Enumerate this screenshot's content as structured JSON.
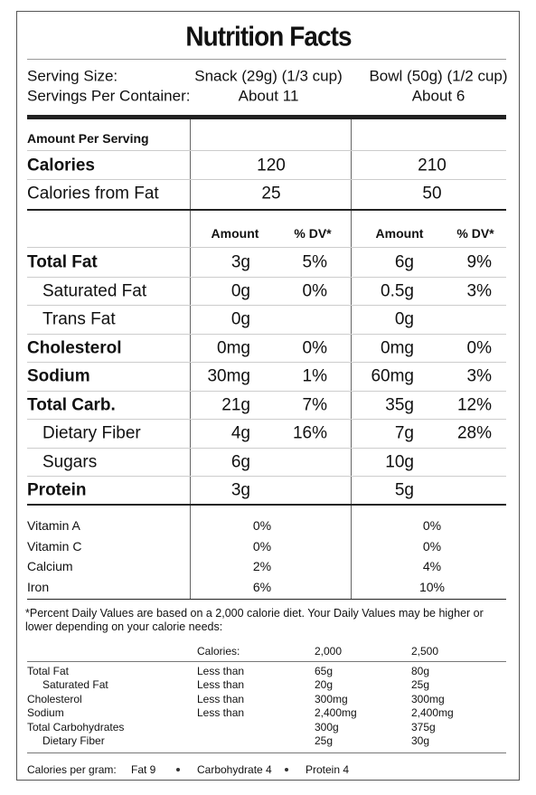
{
  "title": "Nutrition Facts",
  "serving": {
    "rows": [
      {
        "label": "Serving Size:",
        "snack": "Snack (29g) (1/3 cup)",
        "bowl": "Bowl (50g) (1/2 cup)"
      },
      {
        "label": "Servings Per Container:",
        "snack": "About 11",
        "bowl": "About 6"
      }
    ]
  },
  "amount_per_serving": "Amount Per Serving",
  "calories": [
    {
      "label": "Calories",
      "snack": "120",
      "bowl": "210"
    },
    {
      "label": "Calories from Fat",
      "snack": "25",
      "bowl": "50"
    }
  ],
  "nutrients": {
    "header": {
      "amount": "Amount",
      "dv": "% DV*"
    },
    "rows": [
      {
        "label": "Total Fat",
        "snack": [
          "3g",
          "5%"
        ],
        "bowl": [
          "6g",
          "9%"
        ]
      },
      {
        "label": "Saturated Fat",
        "snack": [
          "0g",
          "0%"
        ],
        "bowl": [
          "0.5g",
          "3%"
        ]
      },
      {
        "label": "Trans Fat",
        "snack": [
          "0g"
        ],
        "bowl": [
          "0g"
        ]
      },
      {
        "label": "Cholesterol",
        "snack": [
          "0mg",
          "0%"
        ],
        "bowl": [
          "0mg",
          "0%"
        ]
      },
      {
        "label": "Sodium",
        "snack": [
          "30mg",
          "1%"
        ],
        "bowl": [
          "60mg",
          "3%"
        ]
      },
      {
        "label": "Total Carb.",
        "snack": [
          "21g",
          "7%"
        ],
        "bowl": [
          "35g",
          "12%"
        ]
      },
      {
        "label": "Dietary Fiber",
        "snack": [
          "4g",
          "16%"
        ],
        "bowl": [
          "7g",
          "28%"
        ]
      },
      {
        "label": "Sugars",
        "snack": [
          "6g"
        ],
        "bowl": [
          "10g"
        ]
      },
      {
        "label": "Protein",
        "snack": [
          "3g"
        ],
        "bowl": [
          "5g"
        ]
      }
    ]
  },
  "vitamins": [
    {
      "label": "Vitamin A",
      "snack": "0%",
      "bowl": "0%"
    },
    {
      "label": "Vitamin C",
      "snack": "0%",
      "bowl": "0%"
    },
    {
      "label": "Calcium",
      "snack": "2%",
      "bowl": "4%"
    },
    {
      "label": "Iron",
      "snack": "6%",
      "bowl": "10%"
    }
  ],
  "footnote": "*Percent Daily Values are based on a 2,000 calorie diet. Your Daily Values may be higher or lower depending on your calorie needs:",
  "daily_values": {
    "header": [
      "Calories:",
      "2,000",
      "2,500"
    ],
    "rows": [
      {
        "nutrient": "Total Fat",
        "limit": "Less than",
        "amounts": [
          "65g",
          "80g"
        ]
      },
      {
        "nutrient": "Saturated Fat",
        "limit": "Less than",
        "amounts": [
          "20g",
          "25g"
        ]
      },
      {
        "nutrient": "Cholesterol",
        "limit": "Less than",
        "amounts": [
          "300mg",
          "300mg"
        ]
      },
      {
        "nutrient": "Sodium",
        "limit": "Less than",
        "amounts": [
          "2,400mg",
          "2,400mg"
        ]
      },
      {
        "nutrient": "Total Carbohydrates",
        "amounts": [
          "300g",
          "375g"
        ]
      },
      {
        "nutrient": "Dietary Fiber",
        "amounts": [
          "25g",
          "30g"
        ]
      }
    ]
  },
  "calories_per_gram": {
    "label": "Calories per gram:",
    "items": [
      "Fat 9",
      "Carbohydrate 4",
      "Protein 4"
    ]
  }
}
